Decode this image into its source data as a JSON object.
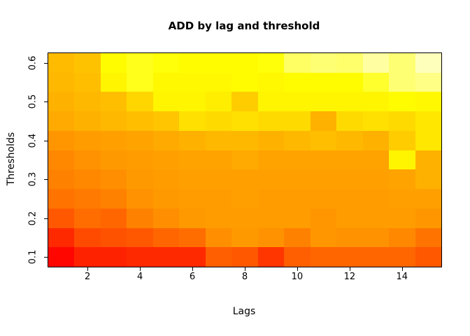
{
  "chart_data": {
    "type": "heatmap",
    "title": "ADD by lag and threshold",
    "xlabel": "Lags",
    "ylabel": "Thresholds",
    "x": [
      1,
      2,
      3,
      4,
      5,
      6,
      7,
      8,
      9,
      10,
      11,
      12,
      13,
      14,
      15
    ],
    "y_top_to_bottom": [
      0.6,
      0.55,
      0.5,
      0.45,
      0.4,
      0.35,
      0.3,
      0.25,
      0.2,
      0.15,
      0.1
    ],
    "x_ticks": [
      2,
      4,
      6,
      8,
      10,
      12,
      14
    ],
    "y_ticks": [
      0.1,
      0.2,
      0.3,
      0.4,
      0.5,
      0.6
    ],
    "x_range": [
      0.5,
      15.5
    ],
    "y_range": [
      0.075,
      0.625
    ],
    "grid": false,
    "legend": "none",
    "palette": "heat: red -> orange -> yellow -> pale yellow/white",
    "value_scale": "normalized 0 (red, lowest ADD) to 1 (near-white, highest ADD), estimated from cell colors",
    "values_rows_top_to_bottom": [
      [
        0.55,
        0.57,
        0.74,
        0.78,
        0.76,
        0.74,
        0.74,
        0.74,
        0.76,
        0.86,
        0.88,
        0.87,
        0.93,
        0.88,
        0.96
      ],
      [
        0.54,
        0.56,
        0.72,
        0.78,
        0.73,
        0.73,
        0.73,
        0.74,
        0.73,
        0.74,
        0.74,
        0.74,
        0.8,
        0.88,
        0.9
      ],
      [
        0.52,
        0.54,
        0.56,
        0.63,
        0.72,
        0.72,
        0.7,
        0.6,
        0.72,
        0.72,
        0.72,
        0.72,
        0.72,
        0.74,
        0.73
      ],
      [
        0.5,
        0.52,
        0.54,
        0.56,
        0.58,
        0.66,
        0.64,
        0.66,
        0.64,
        0.64,
        0.52,
        0.64,
        0.66,
        0.64,
        0.68
      ],
      [
        0.44,
        0.46,
        0.47,
        0.48,
        0.5,
        0.52,
        0.54,
        0.54,
        0.52,
        0.54,
        0.56,
        0.54,
        0.52,
        0.6,
        0.68
      ],
      [
        0.4,
        0.43,
        0.45,
        0.46,
        0.47,
        0.48,
        0.48,
        0.5,
        0.48,
        0.48,
        0.48,
        0.48,
        0.48,
        0.72,
        0.52
      ],
      [
        0.38,
        0.4,
        0.42,
        0.45,
        0.46,
        0.47,
        0.47,
        0.47,
        0.47,
        0.47,
        0.47,
        0.47,
        0.47,
        0.48,
        0.52
      ],
      [
        0.34,
        0.36,
        0.38,
        0.43,
        0.45,
        0.46,
        0.46,
        0.47,
        0.46,
        0.46,
        0.46,
        0.46,
        0.46,
        0.47,
        0.47
      ],
      [
        0.26,
        0.32,
        0.3,
        0.38,
        0.42,
        0.45,
        0.46,
        0.46,
        0.46,
        0.46,
        0.44,
        0.46,
        0.46,
        0.46,
        0.44
      ],
      [
        0.12,
        0.22,
        0.24,
        0.26,
        0.3,
        0.32,
        0.42,
        0.45,
        0.43,
        0.38,
        0.44,
        0.43,
        0.43,
        0.4,
        0.34
      ],
      [
        0.02,
        0.1,
        0.1,
        0.12,
        0.12,
        0.12,
        0.28,
        0.26,
        0.16,
        0.28,
        0.3,
        0.3,
        0.3,
        0.3,
        0.26
      ]
    ]
  }
}
